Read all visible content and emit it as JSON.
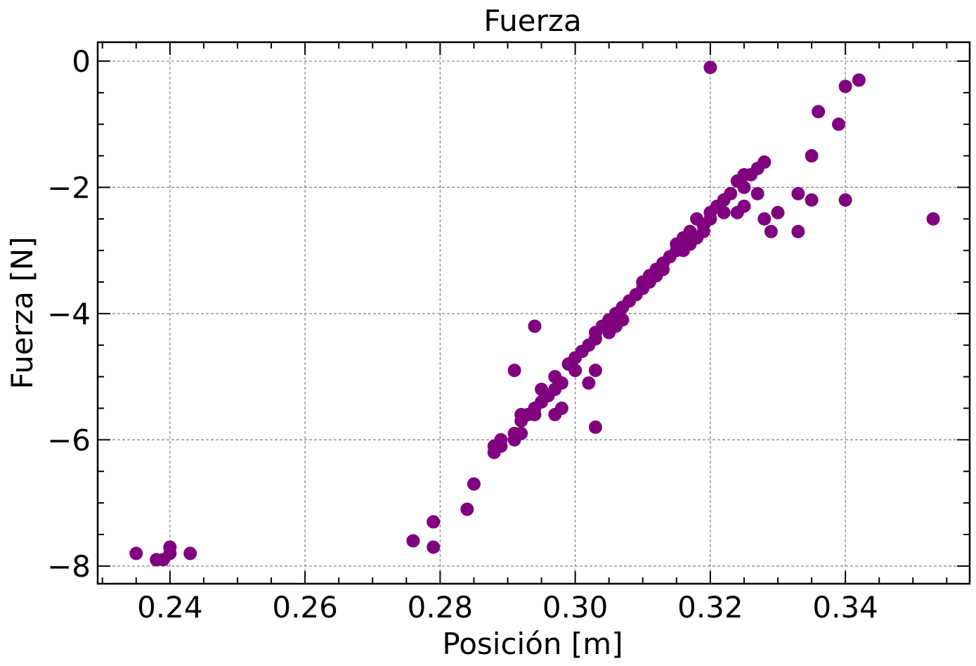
{
  "chart_data": {
    "type": "scatter",
    "title": "Fuerza",
    "xlabel": "Posición [m]",
    "ylabel": "Fuerza [N]",
    "xlim": [
      0.2293,
      0.3584
    ],
    "ylim": [
      -8.28,
      0.3
    ],
    "xticks": [
      0.24,
      0.26,
      0.28,
      0.3,
      0.32,
      0.34
    ],
    "xtick_labels": [
      "0.24",
      "0.26",
      "0.28",
      "0.30",
      "0.32",
      "0.34"
    ],
    "yticks": [
      0,
      -2,
      -4,
      -6,
      -8
    ],
    "ytick_labels": [
      "0",
      "−2",
      "−4",
      "−6",
      "−8"
    ],
    "grid": true,
    "marker_color": "#800080",
    "series": [
      {
        "x": [
          0.235,
          0.238,
          0.239,
          0.24,
          0.24,
          0.243,
          0.276,
          0.279,
          0.279,
          0.284,
          0.285,
          0.288,
          0.288,
          0.289,
          0.289,
          0.291,
          0.291,
          0.292,
          0.292,
          0.292,
          0.293,
          0.294,
          0.294,
          0.295,
          0.295,
          0.296,
          0.297,
          0.297,
          0.297,
          0.298,
          0.298,
          0.299,
          0.3,
          0.3,
          0.301,
          0.302,
          0.302,
          0.303,
          0.303,
          0.303,
          0.303,
          0.304,
          0.305,
          0.305,
          0.306,
          0.306,
          0.307,
          0.307,
          0.308,
          0.309,
          0.31,
          0.31,
          0.311,
          0.311,
          0.312,
          0.312,
          0.313,
          0.313,
          0.314,
          0.315,
          0.315,
          0.316,
          0.316,
          0.317,
          0.317,
          0.318,
          0.318,
          0.319,
          0.319,
          0.32,
          0.32,
          0.321,
          0.322,
          0.322,
          0.323,
          0.324,
          0.324,
          0.325,
          0.325,
          0.325,
          0.326,
          0.327,
          0.327,
          0.328,
          0.328,
          0.329,
          0.33,
          0.333,
          0.333,
          0.335,
          0.335,
          0.336,
          0.339,
          0.34,
          0.34,
          0.342,
          0.353,
          0.294,
          0.291,
          0.32
        ],
        "y": [
          -7.8,
          -7.9,
          -7.9,
          -7.8,
          -7.7,
          -7.8,
          -7.6,
          -7.7,
          -7.3,
          -7.1,
          -6.7,
          -6.1,
          -6.2,
          -6.0,
          -6.1,
          -6.0,
          -5.9,
          -5.9,
          -5.7,
          -5.6,
          -5.6,
          -5.5,
          -5.6,
          -5.4,
          -5.2,
          -5.3,
          -5.2,
          -5.0,
          -5.6,
          -5.1,
          -5.5,
          -4.8,
          -4.9,
          -4.7,
          -4.6,
          -4.5,
          -5.1,
          -4.4,
          -4.3,
          -4.9,
          -5.8,
          -4.2,
          -4.1,
          -4.3,
          -4.0,
          -4.2,
          -3.9,
          -4.1,
          -3.8,
          -3.7,
          -3.5,
          -3.6,
          -3.4,
          -3.5,
          -3.3,
          -3.4,
          -3.2,
          -3.3,
          -3.1,
          -2.9,
          -3.0,
          -2.8,
          -3.0,
          -2.7,
          -2.9,
          -2.5,
          -2.8,
          -2.6,
          -2.7,
          -2.4,
          -2.5,
          -2.3,
          -2.2,
          -2.4,
          -2.1,
          -1.9,
          -2.4,
          -1.8,
          -2.0,
          -2.3,
          -1.8,
          -1.7,
          -2.1,
          -1.6,
          -2.5,
          -2.7,
          -2.4,
          -2.1,
          -2.7,
          -1.5,
          -2.2,
          -0.8,
          -1.0,
          -0.4,
          -2.2,
          -0.3,
          -2.5,
          -4.2,
          -4.9,
          -0.1
        ]
      }
    ]
  }
}
